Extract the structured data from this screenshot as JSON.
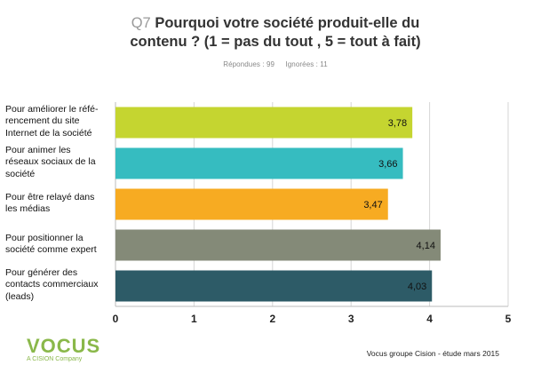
{
  "title": {
    "prefix": "Q7",
    "text": "Pourquoi votre société produit-elle du contenu ? (1 = pas du tout , 5 = tout à fait)"
  },
  "responses": {
    "answered": "Répondues : 99",
    "ignored": "Ignorées : 11"
  },
  "chart_data": {
    "type": "bar",
    "orientation": "horizontal",
    "categories": [
      "Pour améliorer le réfé-rencement du site Internet de la société",
      "Pour animer les réseaux sociaux de la société",
      "Pour être relayé dans les médias",
      "Pour positionner la société comme expert",
      "Pour générer des contacts commerciaux (leads)"
    ],
    "category_lines": [
      [
        "Pour améliorer le réfé-",
        "rencement du site",
        "Internet de la société"
      ],
      [
        "Pour animer les",
        "réseaux sociaux de la",
        "société"
      ],
      [
        "Pour être relayé dans",
        "les médias"
      ],
      [
        "Pour positionner la",
        "société comme expert"
      ],
      [
        "Pour générer des",
        "contacts commerciaux",
        "(leads)"
      ]
    ],
    "values": [
      3.78,
      3.66,
      3.47,
      4.14,
      4.03
    ],
    "value_labels": [
      "3,78",
      "3,66",
      "3,47",
      "4,14",
      "4,03"
    ],
    "bar_colors": [
      "#c5d530",
      "#36bcc0",
      "#f7ab22",
      "#848a78",
      "#2d5b67"
    ],
    "xlim": [
      0,
      5
    ],
    "x_ticks": [
      "0",
      "1",
      "2",
      "3",
      "4",
      "5"
    ],
    "grid": true,
    "legend": "none"
  },
  "logo": {
    "word": "VOCUS",
    "sub": "A CISION Company"
  },
  "source": "Vocus groupe Cision - étude mars 2015"
}
